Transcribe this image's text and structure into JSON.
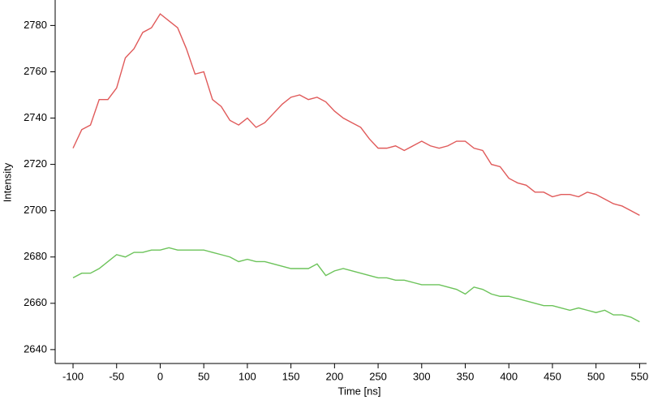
{
  "chart_data": {
    "type": "line",
    "x_label": "Time [ns]",
    "y_label": "Intensity",
    "x": [
      -100,
      -90,
      -80,
      -70,
      -60,
      -50,
      -40,
      -30,
      -20,
      -10,
      0,
      10,
      20,
      30,
      40,
      50,
      60,
      70,
      80,
      90,
      100,
      110,
      120,
      130,
      140,
      150,
      160,
      170,
      180,
      190,
      200,
      210,
      220,
      230,
      240,
      250,
      260,
      270,
      280,
      290,
      300,
      310,
      320,
      330,
      340,
      350,
      360,
      370,
      380,
      390,
      400,
      410,
      420,
      430,
      440,
      450,
      460,
      470,
      480,
      490,
      500,
      510,
      520,
      530,
      540,
      550
    ],
    "series": [
      {
        "color": "#e05a5a",
        "values": [
          2727,
          2735,
          2737,
          2748,
          2748,
          2753,
          2766,
          2770,
          2777,
          2779,
          2785,
          2782,
          2779,
          2770,
          2759,
          2760,
          2748,
          2745,
          2739,
          2737,
          2740,
          2736,
          2738,
          2742,
          2746,
          2749,
          2750,
          2748,
          2749,
          2747,
          2743,
          2740,
          2738,
          2736,
          2731,
          2727,
          2727,
          2728,
          2726,
          2728,
          2730,
          2728,
          2727,
          2728,
          2730,
          2730,
          2727,
          2726,
          2720,
          2719,
          2714,
          2712,
          2711,
          2708,
          2708,
          2706,
          2707,
          2707,
          2706,
          2708,
          2707,
          2705,
          2703,
          2702,
          2700,
          2698
        ]
      },
      {
        "color": "#6cc35a",
        "values": [
          2671,
          2673,
          2673,
          2675,
          2678,
          2681,
          2680,
          2682,
          2682,
          2683,
          2683,
          2684,
          2683,
          2683,
          2683,
          2683,
          2682,
          2681,
          2680,
          2678,
          2679,
          2678,
          2678,
          2677,
          2676,
          2675,
          2675,
          2675,
          2677,
          2672,
          2674,
          2675,
          2674,
          2673,
          2672,
          2671,
          2671,
          2670,
          2670,
          2669,
          2668,
          2668,
          2668,
          2667,
          2666,
          2664,
          2667,
          2666,
          2664,
          2663,
          2663,
          2662,
          2661,
          2660,
          2659,
          2659,
          2658,
          2657,
          2658,
          2657,
          2656,
          2657,
          2655,
          2655,
          2654,
          2652
        ]
      }
    ],
    "xlim": [
      -120.5,
      558
    ],
    "xticks": [
      -100,
      -50,
      0,
      50,
      100,
      150,
      200,
      250,
      300,
      350,
      400,
      450,
      500,
      550
    ],
    "ylim": [
      2634,
      2791
    ],
    "yticks": [
      2640,
      2660,
      2680,
      2700,
      2720,
      2740,
      2760,
      2780
    ]
  }
}
